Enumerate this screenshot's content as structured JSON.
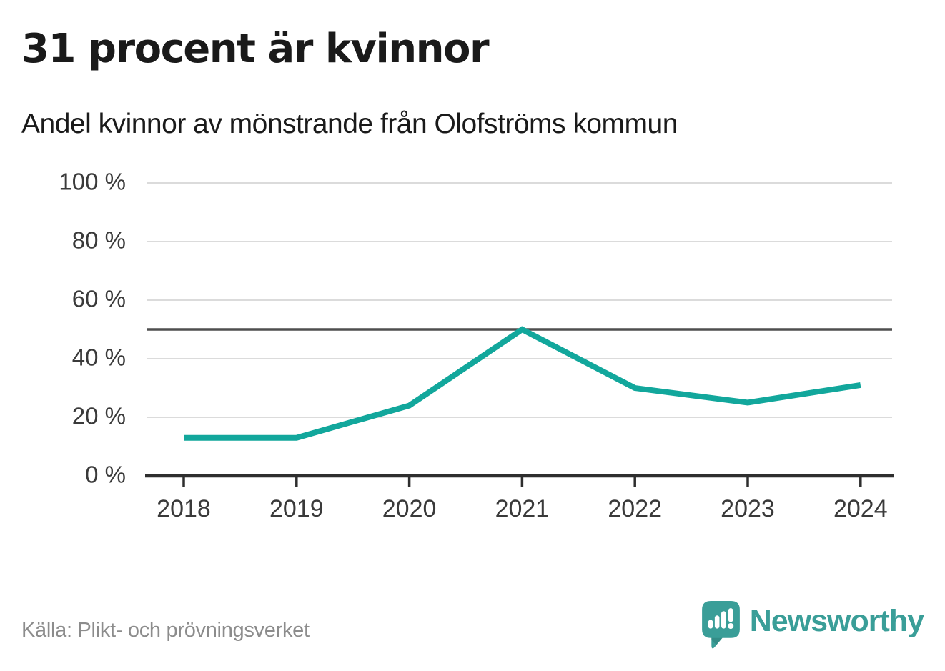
{
  "header": {
    "title": "31 procent är kvinnor",
    "subtitle": "Andel kvinnor av mönstrande från Olofströms kommun"
  },
  "footer": {
    "source": "Källa: Plikt- och prövningsverket",
    "brand": "Newsworthy"
  },
  "colors": {
    "text": "#1a1a1a",
    "muted": "#8c8c8c",
    "line": "#12a79c",
    "grid": "#dbdbdb",
    "benchmark": "#4f4f4f",
    "axis": "#2e2e2e",
    "tick_text": "#3a3a3a",
    "brand_teal": "#3a9e98",
    "brand_teal_dark": "#2d7f7a"
  },
  "chart_data": {
    "type": "line",
    "title": "31 procent är kvinnor",
    "subtitle": "Andel kvinnor av mönstrande från Olofströms kommun",
    "x": [
      2018,
      2019,
      2020,
      2021,
      2022,
      2023,
      2024
    ],
    "x_labels": [
      "2018",
      "2019",
      "2020",
      "2021",
      "2022",
      "2023",
      "2024"
    ],
    "series": [
      {
        "name": "Andel kvinnor av mönstrande",
        "values": [
          13,
          13,
          24,
          50,
          30,
          25,
          31
        ]
      }
    ],
    "unit": "%",
    "ylim": [
      0,
      100
    ],
    "yticks": [
      0,
      20,
      40,
      60,
      80,
      100
    ],
    "ytick_labels": [
      "0 %",
      "20 %",
      "40 %",
      "60 %",
      "80 %",
      "100 %"
    ],
    "reference_line": 50,
    "grid": true,
    "legend_position": "none"
  }
}
